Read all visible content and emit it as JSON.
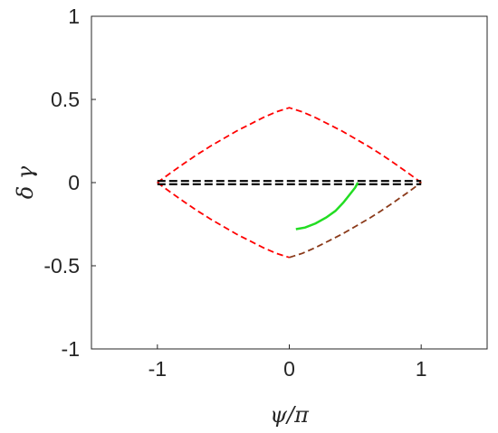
{
  "chart_data": {
    "type": "line",
    "xlabel": "ψ/π",
    "ylabel": "δ γ",
    "xlim": [
      -1.5,
      1.5
    ],
    "ylim": [
      -1,
      1
    ],
    "xticks": [
      -1,
      0,
      1
    ],
    "xtick_labels": [
      "-1",
      "0",
      "1"
    ],
    "yticks": [
      -1,
      -0.5,
      0,
      0.5,
      1
    ],
    "ytick_labels": [
      "-1",
      "-0.5",
      "0",
      "0.5",
      "1"
    ],
    "grid": false,
    "legend": "none",
    "series": [
      {
        "style": "dashed",
        "color": "#ff0000",
        "x": [
          -1,
          -0.9,
          -0.8,
          -0.7,
          -0.6,
          -0.5,
          -0.4,
          -0.3,
          -0.2,
          -0.1,
          0,
          0.1,
          0.2,
          0.3,
          0.4,
          0.5,
          0.6,
          0.7,
          0.8,
          0.9,
          1
        ],
        "y": [
          0,
          0.058,
          0.114,
          0.168,
          0.218,
          0.264,
          0.31,
          0.35,
          0.39,
          0.425,
          0.45,
          0.425,
          0.39,
          0.35,
          0.31,
          0.264,
          0.218,
          0.168,
          0.114,
          0.058,
          0
        ]
      },
      {
        "style": "dashed",
        "color": "#ff0000",
        "x": [
          -1,
          -0.9,
          -0.8,
          -0.7,
          -0.6,
          -0.5,
          -0.4,
          -0.3,
          -0.2,
          -0.1,
          0
        ],
        "y": [
          0,
          -0.058,
          -0.114,
          -0.168,
          -0.218,
          -0.264,
          -0.31,
          -0.35,
          -0.39,
          -0.425,
          -0.45
        ]
      },
      {
        "style": "dashed",
        "color": "#8b3a1a",
        "x": [
          0,
          0.1,
          0.2,
          0.3,
          0.4,
          0.5,
          0.6,
          0.7,
          0.8,
          0.9,
          1
        ],
        "y": [
          -0.45,
          -0.425,
          -0.39,
          -0.35,
          -0.31,
          -0.264,
          -0.218,
          -0.168,
          -0.114,
          -0.058,
          0
        ]
      },
      {
        "style": "dashed",
        "color": "#000000",
        "x": [
          -1,
          1
        ],
        "y": [
          0.01,
          0.01
        ]
      },
      {
        "style": "dashed",
        "color": "#000000",
        "x": [
          -1,
          1
        ],
        "y": [
          -0.01,
          -0.01
        ]
      },
      {
        "style": "solid",
        "color": "#22dd22",
        "x": [
          0.05,
          0.12,
          0.2,
          0.28,
          0.35,
          0.41,
          0.46,
          0.5,
          0.52
        ],
        "y": [
          -0.28,
          -0.27,
          -0.245,
          -0.21,
          -0.17,
          -0.12,
          -0.07,
          -0.03,
          0
        ]
      }
    ]
  }
}
